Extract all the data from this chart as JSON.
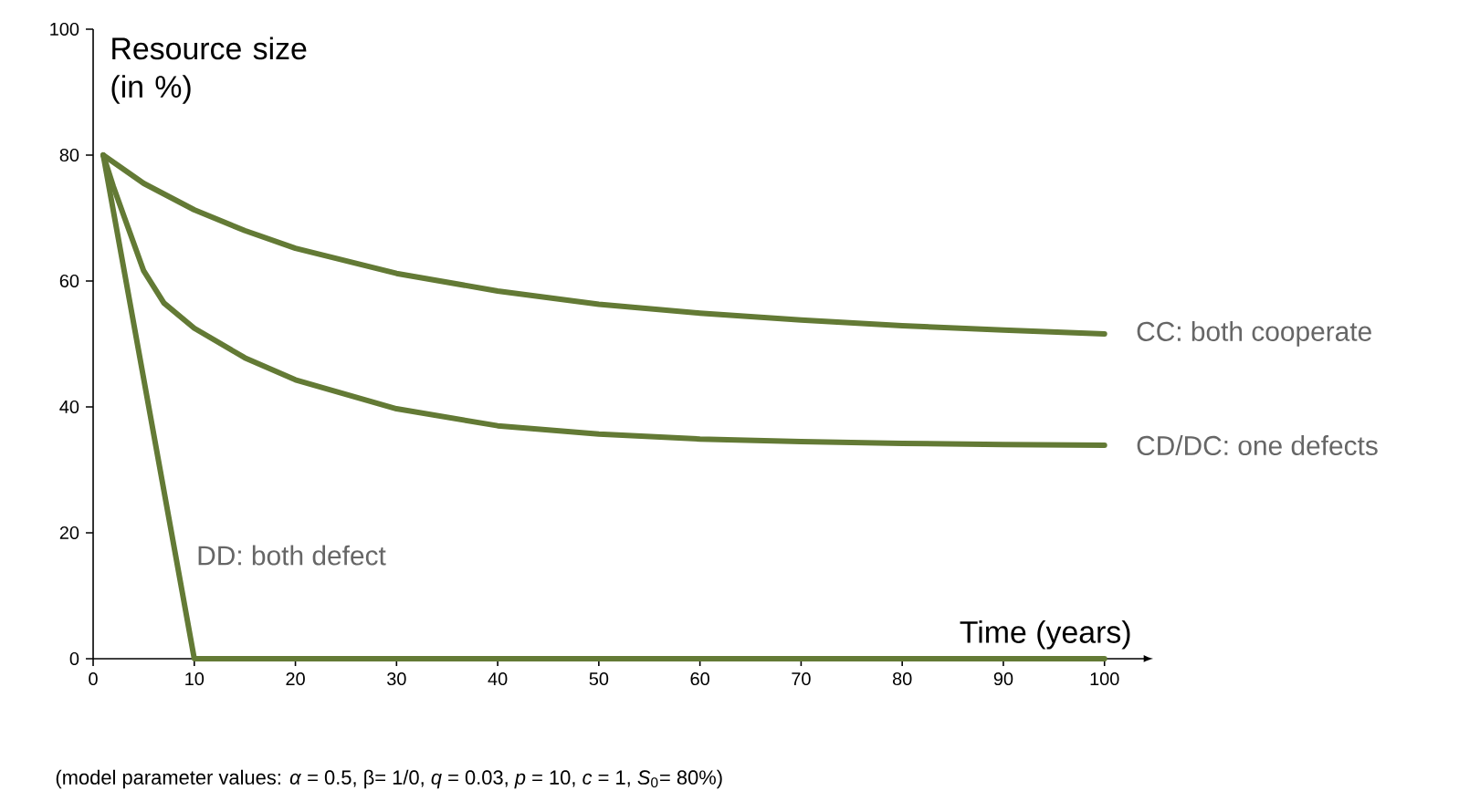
{
  "chart_data": {
    "type": "line",
    "xlabel": "Time (years)",
    "ylabel": "Resource size (in %)",
    "xlim": [
      0,
      104
    ],
    "ylim": [
      0,
      100
    ],
    "xticks": [
      0,
      10,
      20,
      30,
      40,
      50,
      60,
      70,
      80,
      90,
      100
    ],
    "yticks": [
      0,
      20,
      40,
      60,
      80,
      100
    ],
    "grid": false,
    "marker": "none",
    "line_style": "solid",
    "series": [
      {
        "name": "CC: both cooperate",
        "color": "#637a35",
        "x": [
          1,
          5,
          10,
          15,
          20,
          30,
          40,
          50,
          60,
          70,
          80,
          90,
          100
        ],
        "values": [
          80,
          75.5,
          71.3,
          68,
          65.2,
          61.2,
          58.4,
          56.3,
          54.9,
          53.8,
          52.9,
          52.2,
          51.6
        ]
      },
      {
        "name": "CD/DC: one defects",
        "color": "#637a35",
        "x": [
          1,
          2,
          3,
          5,
          7,
          10,
          15,
          20,
          30,
          40,
          50,
          60,
          70,
          80,
          90,
          100
        ],
        "values": [
          80,
          75,
          70.5,
          61.6,
          56.5,
          52.5,
          47.8,
          44.3,
          39.7,
          37.0,
          35.7,
          34.9,
          34.5,
          34.2,
          34.0,
          33.9
        ]
      },
      {
        "name": "DD: both defect",
        "color": "#637a35",
        "x": [
          1,
          10,
          100
        ],
        "values": [
          80,
          0,
          0
        ]
      }
    ],
    "annotations": [
      "(model parameter values: *α* = 0.5, β= 1/0, *q* = 0.03, *p* = 10, *c* = 1, *S*$_{0}$= 80%)"
    ]
  }
}
